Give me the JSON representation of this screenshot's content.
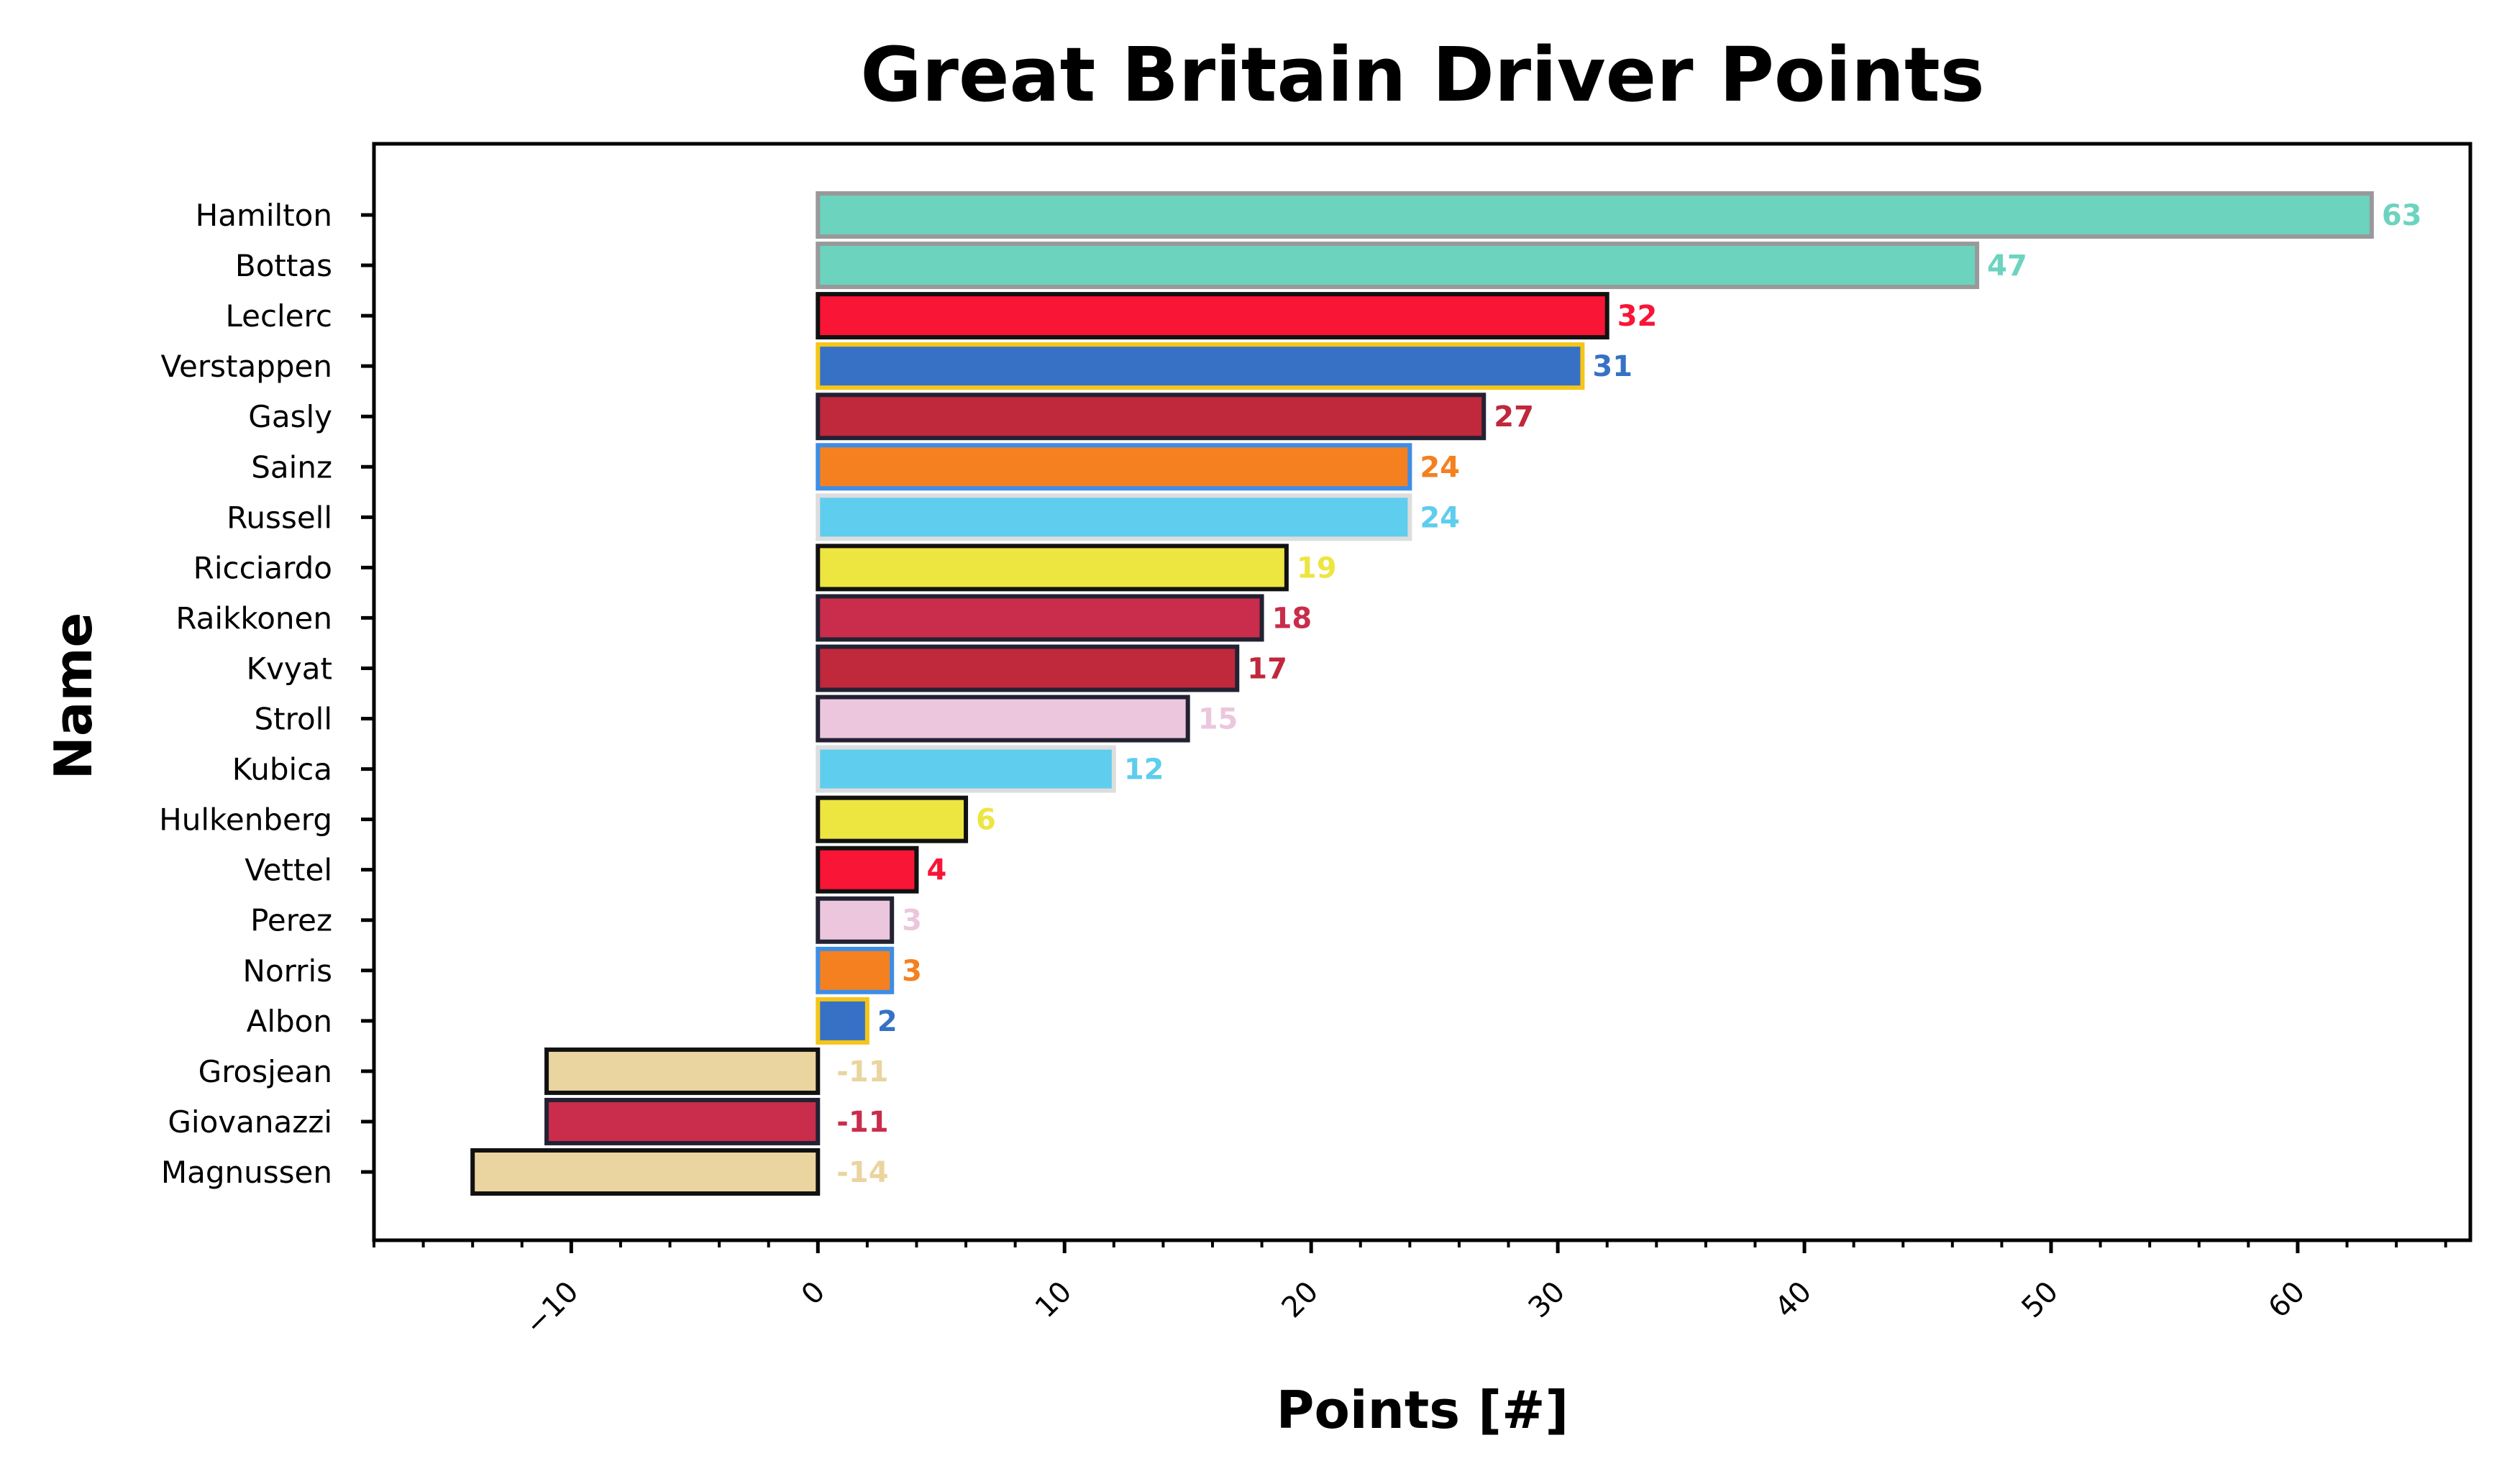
{
  "chart_data": {
    "type": "bar",
    "orientation": "horizontal",
    "title": "Great Britain Driver Points",
    "xlabel": "Points [#]",
    "ylabel": "Name",
    "xlim": [
      -18,
      67
    ],
    "xticks": [
      -10,
      0,
      10,
      20,
      30,
      40,
      50,
      60
    ],
    "xtick_labels": [
      "−10",
      "0",
      "10",
      "20",
      "30",
      "40",
      "50",
      "60"
    ],
    "grid": false,
    "categories": [
      "Hamilton",
      "Bottas",
      "Leclerc",
      "Verstappen",
      "Gasly",
      "Sainz",
      "Russell",
      "Ricciardo",
      "Raikkonen",
      "Kvyat",
      "Stroll",
      "Kubica",
      "Hulkenberg",
      "Vettel",
      "Perez",
      "Norris",
      "Albon",
      "Grosjean",
      "Giovanazzi",
      "Magnussen"
    ],
    "values": [
      63,
      47,
      32,
      31,
      27,
      24,
      24,
      19,
      18,
      17,
      15,
      12,
      6,
      4,
      3,
      3,
      2,
      -11,
      -11,
      -14
    ],
    "value_labels": [
      "63",
      "47",
      "32",
      "31",
      "27",
      "24",
      "24",
      "19",
      "18",
      "17",
      "15",
      "12",
      "6",
      "4",
      "3",
      "3",
      "2",
      "-11",
      "-11",
      "-14"
    ],
    "bar_colors": [
      "#6cd3bf",
      "#6cd3bf",
      "#f91536",
      "#3671c6",
      "#c0283c",
      "#f58020",
      "#5ecdee",
      "#ede540",
      "#c92d4b",
      "#c0283c",
      "#ecc6dc",
      "#5ecdee",
      "#ede540",
      "#f91536",
      "#ecc6dc",
      "#f58020",
      "#3671c6",
      "#ead49f",
      "#c92d4b",
      "#ead49f"
    ],
    "edge_colors": [
      "#999999",
      "#999999",
      "#111111",
      "#f5c518",
      "#222233",
      "#3c8ee6",
      "#dddddd",
      "#111111",
      "#222233",
      "#222233",
      "#222233",
      "#dddddd",
      "#111111",
      "#111111",
      "#222233",
      "#3c8ee6",
      "#f5c518",
      "#111111",
      "#222233",
      "#111111"
    ]
  }
}
